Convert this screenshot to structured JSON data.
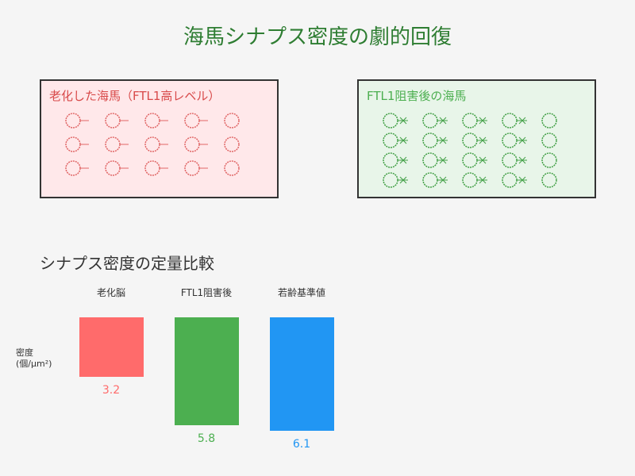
{
  "title": "海馬シナプス密度の劇的回復",
  "panels": {
    "aged": {
      "label": "老化した海馬（FTL1高レベル）",
      "label_color": "#d84a4a",
      "background": "#ffe8ea",
      "synapse_color": "#e06666"
    },
    "inhibited": {
      "label": "FTL1阻害後の海馬",
      "label_color": "#4caf50",
      "background": "#e8f5e9",
      "synapse_color": "#43a047"
    }
  },
  "chart_data": {
    "type": "bar",
    "title": "シナプス密度の定量比較",
    "ylabel_line1": "密度",
    "ylabel_line2": "(個/μm²)",
    "categories": [
      "老化脳",
      "FTL1阻害後",
      "若齢基準値"
    ],
    "values": [
      3.2,
      5.8,
      6.1
    ],
    "value_labels": [
      "3.2",
      "5.8",
      "6.1"
    ],
    "colors": [
      "#ff6b6b",
      "#4caf50",
      "#2196f3"
    ],
    "ylim": [
      0,
      8
    ],
    "grid": false
  }
}
